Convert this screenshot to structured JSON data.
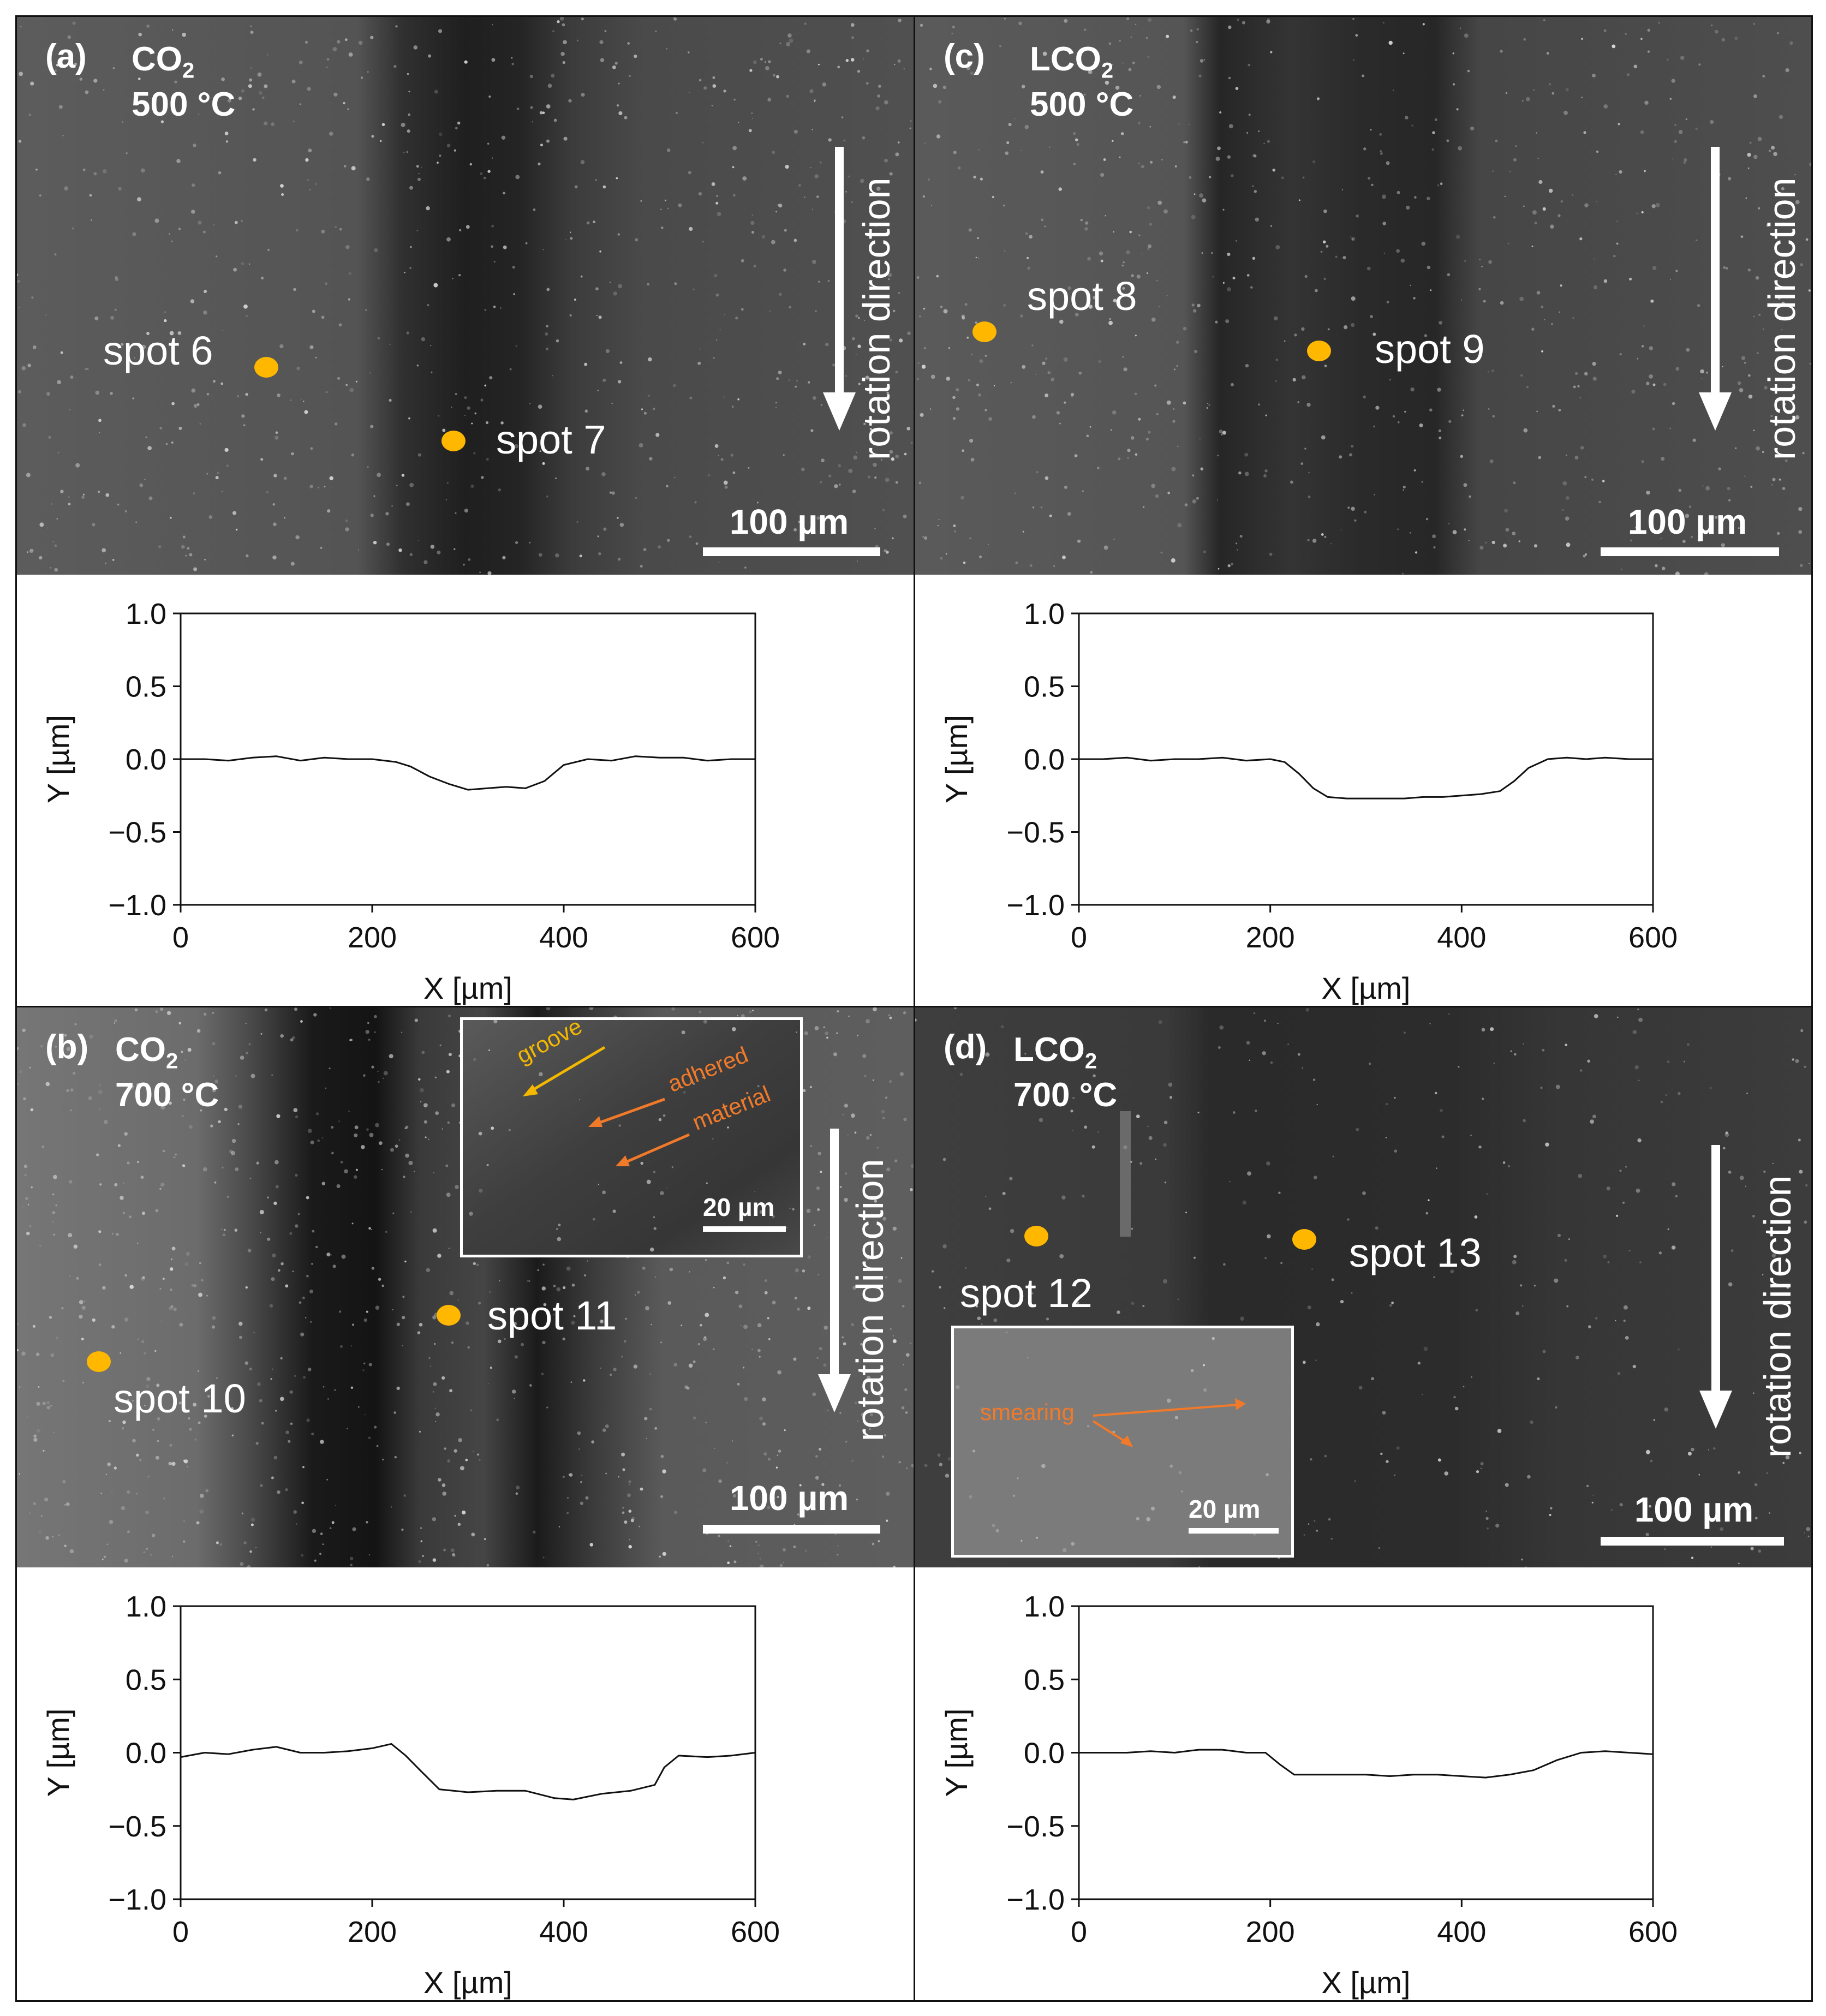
{
  "panels": [
    {
      "id": "a",
      "tag": "(a)",
      "medium": "CO",
      "medium_sub": "2",
      "temperature": "500 °C",
      "spots": [
        {
          "label": "spot 6"
        },
        {
          "label": "spot 7"
        }
      ],
      "rotation_label": "rotation direction",
      "scale_label": "100 µm",
      "inset": null
    },
    {
      "id": "c",
      "tag": "(c)",
      "medium": "LCO",
      "medium_sub": "2",
      "temperature": "500 °C",
      "spots": [
        {
          "label": "spot 8"
        },
        {
          "label": "spot 9"
        }
      ],
      "rotation_label": "rotation direction",
      "scale_label": "100 µm",
      "inset": null
    },
    {
      "id": "b",
      "tag": "(b)",
      "medium": "CO",
      "medium_sub": "2",
      "temperature": "700 °C",
      "spots": [
        {
          "label": "spot 10"
        },
        {
          "label": "spot 11"
        }
      ],
      "rotation_label": "rotation direction",
      "scale_label": "100 µm",
      "inset": {
        "notes": [
          {
            "text": "groove",
            "color": "#f5b800"
          },
          {
            "text": "adhered",
            "color": "#f07a2a"
          },
          {
            "text": "material",
            "color": "#f07a2a"
          }
        ],
        "scale_label": "20 µm"
      }
    },
    {
      "id": "d",
      "tag": "(d)",
      "medium": "LCO",
      "medium_sub": "2",
      "temperature": "700 °C",
      "spots": [
        {
          "label": "spot 12"
        },
        {
          "label": "spot 13"
        }
      ],
      "rotation_label": "rotation direction",
      "scale_label": "100 µm",
      "inset": {
        "notes": [
          {
            "text": "smearing",
            "color": "#f07a2a"
          }
        ],
        "scale_label": "20 µm"
      }
    }
  ],
  "colors": {
    "spot": "#ffb700",
    "sem_light": "#5a5a5a",
    "sem_dark": "#1e1e1e",
    "profile_line": "#111111"
  },
  "chart_data": [
    {
      "panel": "a",
      "type": "line",
      "xlabel": "X [µm]",
      "ylabel": "Y [µm]",
      "xlim": [
        0,
        600
      ],
      "ylim": [
        -1.0,
        1.0
      ],
      "xticks": [
        0,
        200,
        400,
        600
      ],
      "yticks": [
        1.0,
        0.5,
        0.0,
        -0.5,
        -1.0
      ],
      "ytick_labels": [
        "1.0",
        "0.5",
        "0.0",
        "−0.5",
        "−1.0"
      ],
      "x": [
        0,
        25,
        50,
        75,
        100,
        125,
        150,
        175,
        200,
        225,
        240,
        260,
        280,
        300,
        320,
        340,
        360,
        380,
        400,
        425,
        450,
        475,
        500,
        525,
        550,
        575,
        600
      ],
      "y": [
        0.0,
        0.0,
        -0.01,
        0.01,
        0.02,
        -0.01,
        0.01,
        0.0,
        0.0,
        -0.02,
        -0.05,
        -0.12,
        -0.17,
        -0.21,
        -0.2,
        -0.19,
        -0.2,
        -0.15,
        -0.04,
        0.0,
        -0.01,
        0.02,
        0.01,
        0.01,
        -0.01,
        0.0,
        0.0
      ]
    },
    {
      "panel": "c",
      "type": "line",
      "xlabel": "X [µm]",
      "ylabel": "Y [µm]",
      "xlim": [
        0,
        600
      ],
      "ylim": [
        -1.0,
        1.0
      ],
      "xticks": [
        0,
        200,
        400,
        600
      ],
      "yticks": [
        1.0,
        0.5,
        0.0,
        -0.5,
        -1.0
      ],
      "ytick_labels": [
        "1.0",
        "0.5",
        "0.0",
        "−0.5",
        "−1.0"
      ],
      "x": [
        0,
        25,
        50,
        75,
        100,
        125,
        150,
        175,
        200,
        215,
        230,
        245,
        260,
        280,
        300,
        320,
        340,
        360,
        380,
        400,
        420,
        440,
        455,
        470,
        490,
        510,
        530,
        550,
        575,
        600
      ],
      "y": [
        0.0,
        0.0,
        0.01,
        -0.01,
        0.0,
        0.0,
        0.01,
        -0.01,
        0.0,
        -0.02,
        -0.1,
        -0.2,
        -0.26,
        -0.27,
        -0.27,
        -0.27,
        -0.27,
        -0.26,
        -0.26,
        -0.25,
        -0.24,
        -0.22,
        -0.15,
        -0.06,
        0.0,
        0.01,
        0.0,
        0.01,
        0.0,
        0.0
      ]
    },
    {
      "panel": "b",
      "type": "line",
      "xlabel": "X [µm]",
      "ylabel": "Y [µm]",
      "xlim": [
        0,
        600
      ],
      "ylim": [
        -1.0,
        1.0
      ],
      "xticks": [
        0,
        200,
        400,
        600
      ],
      "yticks": [
        1.0,
        0.5,
        0.0,
        -0.5,
        -1.0
      ],
      "ytick_labels": [
        "1.0",
        "0.5",
        "0.0",
        "−0.5",
        "−1.0"
      ],
      "x": [
        0,
        25,
        50,
        75,
        100,
        125,
        150,
        175,
        200,
        220,
        235,
        250,
        270,
        300,
        330,
        360,
        390,
        410,
        440,
        470,
        495,
        505,
        520,
        550,
        575,
        600
      ],
      "y": [
        -0.03,
        0.0,
        -0.01,
        0.02,
        0.04,
        0.0,
        0.0,
        0.01,
        0.03,
        0.06,
        -0.02,
        -0.12,
        -0.25,
        -0.27,
        -0.26,
        -0.26,
        -0.31,
        -0.32,
        -0.28,
        -0.26,
        -0.22,
        -0.1,
        -0.02,
        -0.03,
        -0.02,
        0.0
      ]
    },
    {
      "panel": "d",
      "type": "line",
      "xlabel": "X [µm]",
      "ylabel": "Y [µm]",
      "xlim": [
        0,
        600
      ],
      "ylim": [
        -1.0,
        1.0
      ],
      "xticks": [
        0,
        200,
        400,
        600
      ],
      "yticks": [
        1.0,
        0.5,
        0.0,
        -0.5,
        -1.0
      ],
      "ytick_labels": [
        "1.0",
        "0.5",
        "0.0",
        "−0.5",
        "−1.0"
      ],
      "x": [
        0,
        25,
        50,
        75,
        100,
        125,
        150,
        175,
        195,
        210,
        225,
        250,
        275,
        300,
        325,
        350,
        375,
        400,
        425,
        450,
        475,
        500,
        525,
        550,
        575,
        600
      ],
      "y": [
        0.0,
        0.0,
        0.0,
        0.01,
        0.0,
        0.02,
        0.02,
        0.0,
        0.0,
        -0.08,
        -0.15,
        -0.15,
        -0.15,
        -0.15,
        -0.16,
        -0.15,
        -0.15,
        -0.16,
        -0.17,
        -0.15,
        -0.12,
        -0.05,
        0.0,
        0.01,
        0.0,
        -0.01
      ]
    }
  ]
}
